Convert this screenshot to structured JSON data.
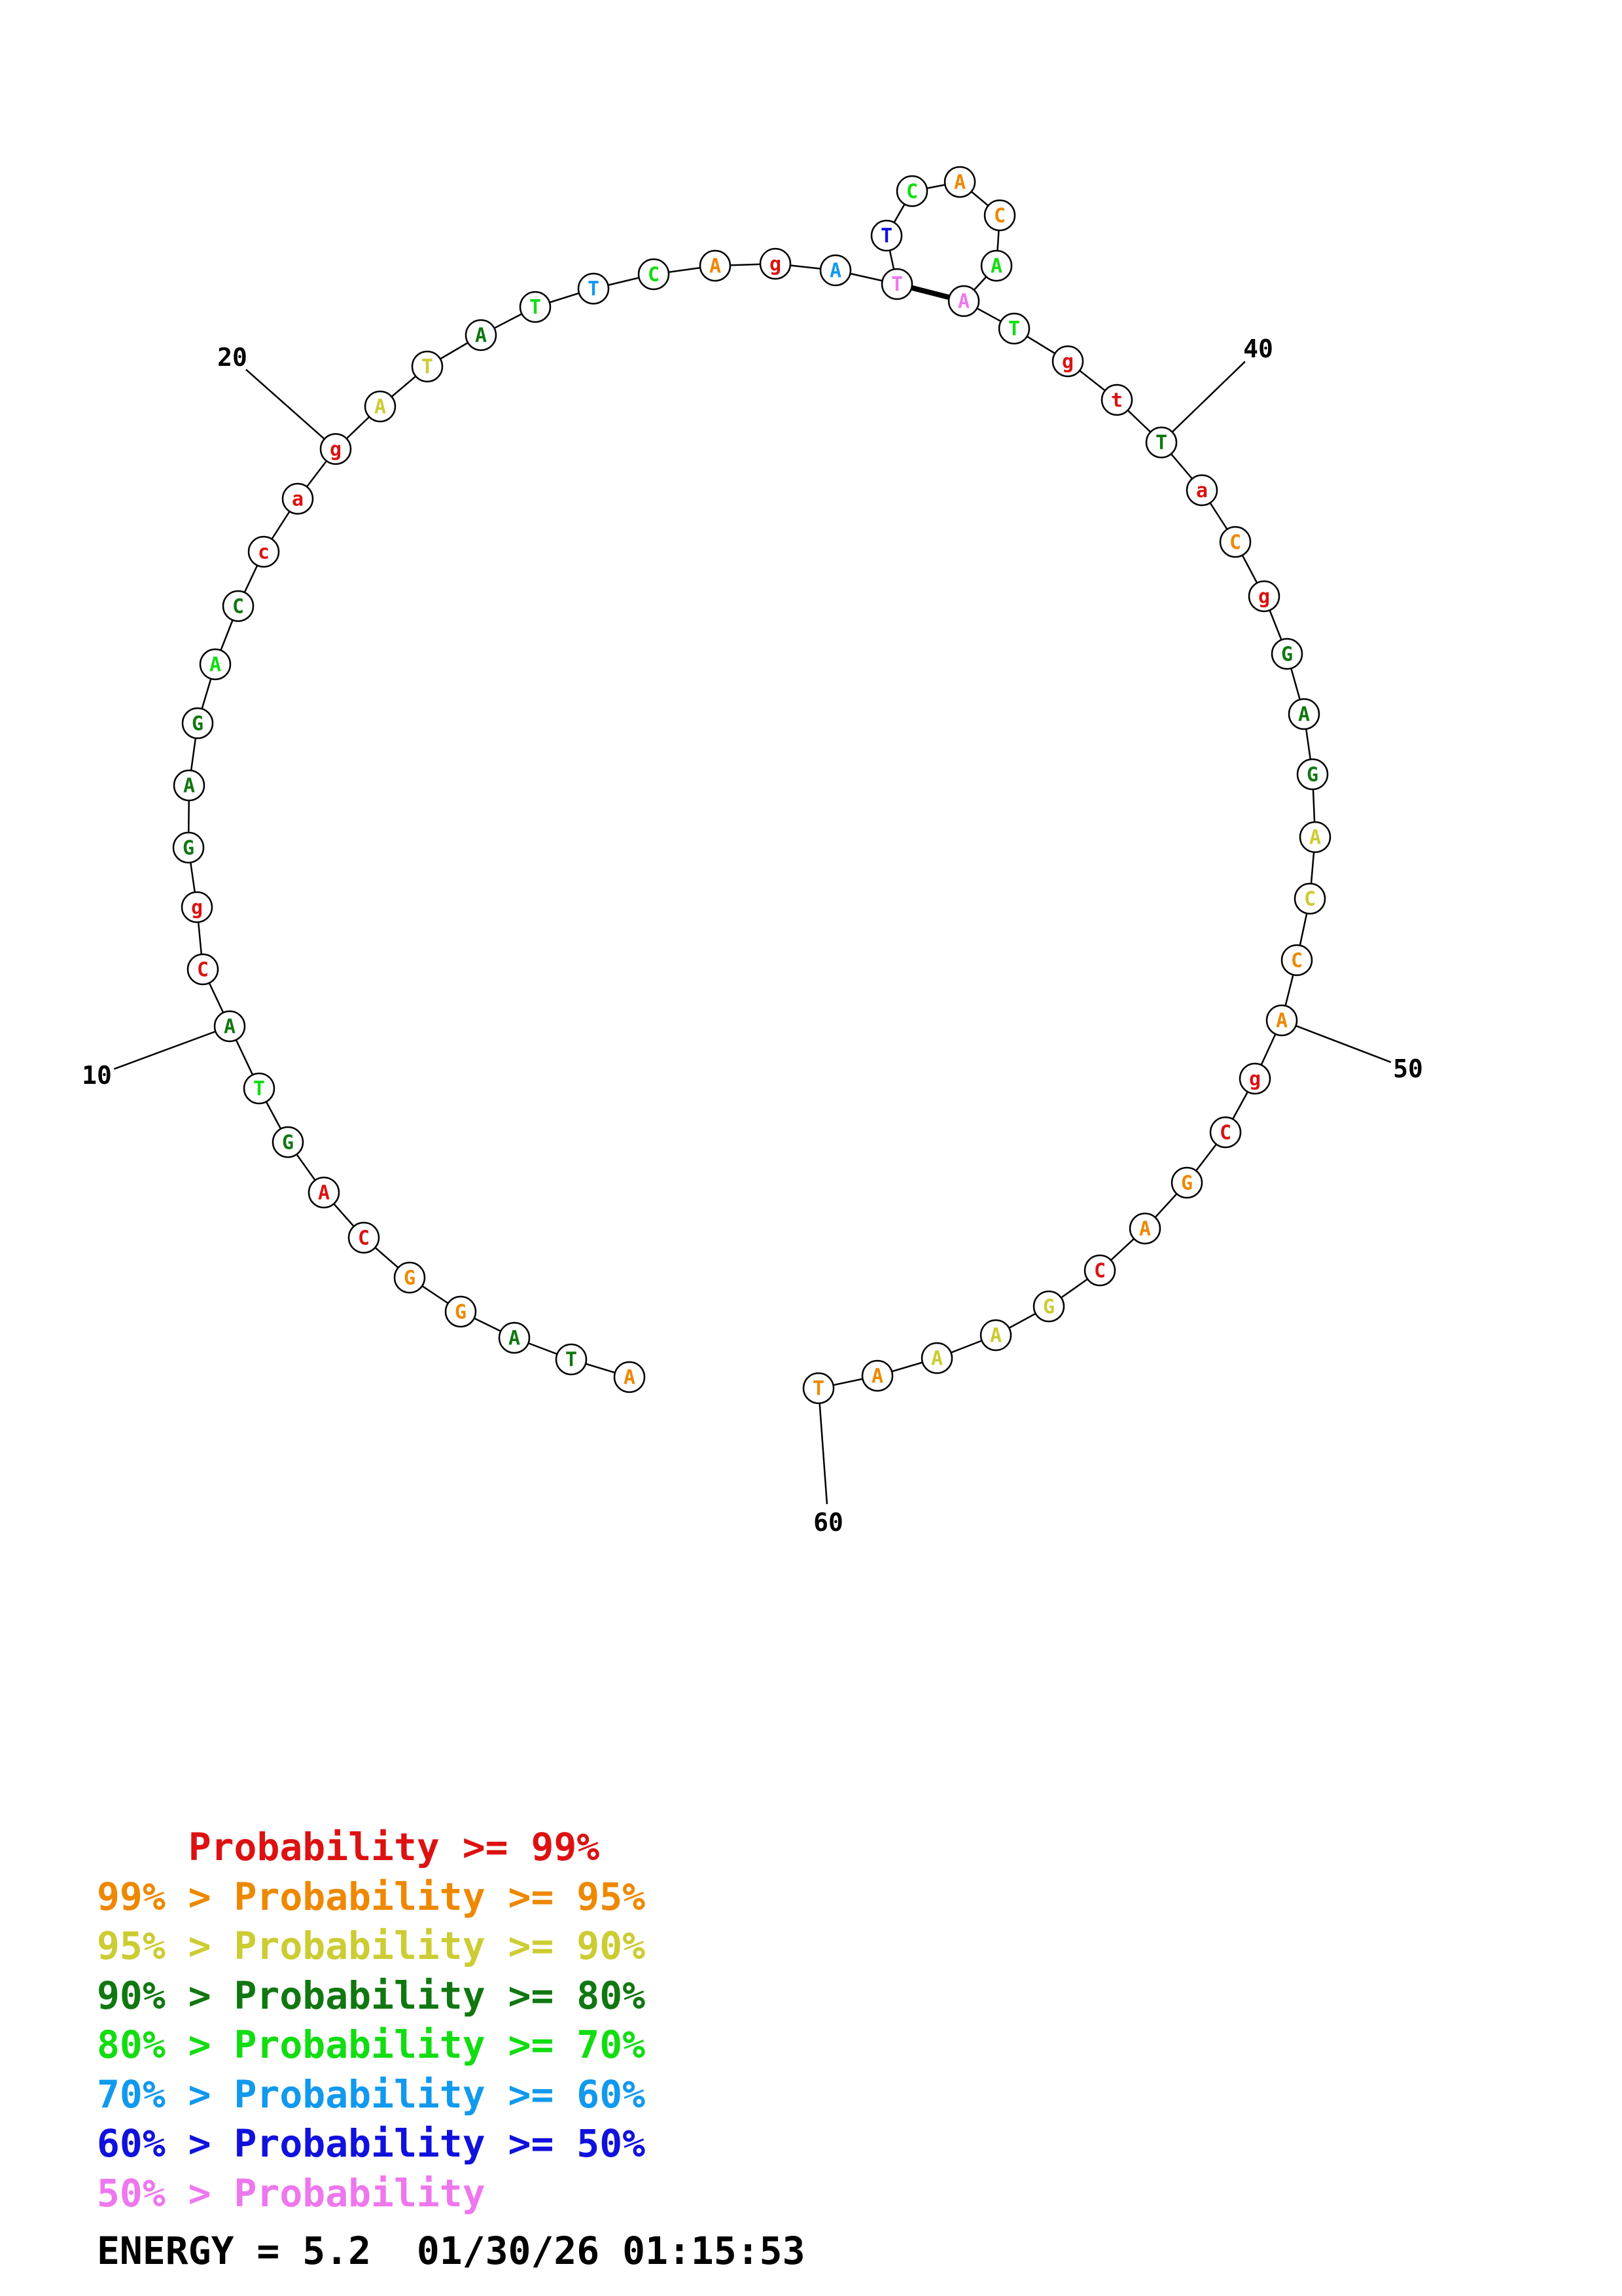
{
  "structure": {
    "sequence": [
      "A",
      "T",
      "A",
      "G",
      "G",
      "C",
      "A",
      "G",
      "T",
      "A",
      "C",
      "g",
      "G",
      "A",
      "G",
      "A",
      "C",
      "c",
      "a",
      "g",
      "A",
      "T",
      "A",
      "T",
      "T",
      "C",
      "A",
      "g",
      "A",
      "T",
      "T",
      "C",
      "A",
      "C",
      "A",
      "A",
      "T",
      "g",
      "t",
      "T",
      "a",
      "C",
      "g",
      "G",
      "A",
      "G",
      "A",
      "C",
      "C",
      "A",
      "g",
      "C",
      "G",
      "A",
      "C",
      "G",
      "A",
      "A",
      "A",
      "T"
    ],
    "base_colors": [
      "#ee8800",
      "#117711",
      "#117711",
      "#ee8800",
      "#ee8800",
      "#dd1111",
      "#dd1111",
      "#117711",
      "#11dd11",
      "#117711",
      "#dd1111",
      "#dd1111",
      "#117711",
      "#117711",
      "#117711",
      "#11dd11",
      "#117711",
      "#dd1111",
      "#dd1111",
      "#dd1111",
      "#cccc33",
      "#cccc33",
      "#117711",
      "#11dd11",
      "#1199ee",
      "#11dd11",
      "#ee8800",
      "#dd1111",
      "#1199ee",
      "#ee77ee",
      "#1111dd",
      "#11dd11",
      "#ee8800",
      "#ee8800",
      "#11dd11",
      "#ee77ee",
      "#11dd11",
      "#dd1111",
      "#dd1111",
      "#117711",
      "#dd1111",
      "#ee8800",
      "#dd1111",
      "#117711",
      "#117711",
      "#117711",
      "#cccc33",
      "#cccc33",
      "#ee8800",
      "#ee8800",
      "#dd1111",
      "#dd1111",
      "#ee8800",
      "#ee8800",
      "#dd1111",
      "#cccc33",
      "#cccc33",
      "#cccc33",
      "#ee8800",
      "#ee8800"
    ],
    "pairs": [
      [
        30,
        36
      ]
    ],
    "numbering": [
      {
        "label": "10",
        "index": 10
      },
      {
        "label": "20",
        "index": 20
      },
      {
        "label": "40",
        "index": 40
      },
      {
        "label": "50",
        "index": 50
      },
      {
        "label": "60",
        "index": 60
      }
    ]
  },
  "legend": [
    {
      "prefix": "    ",
      "text": "Probability >= 99%",
      "color": "#dd1111"
    },
    {
      "prefix": "99% > ",
      "text": "Probability >= 95%",
      "color": "#ee8800"
    },
    {
      "prefix": "95% > ",
      "text": "Probability >= 90%",
      "color": "#cccc33"
    },
    {
      "prefix": "90% > ",
      "text": "Probability >= 80%",
      "color": "#117711"
    },
    {
      "prefix": "80% > ",
      "text": "Probability >= 70%",
      "color": "#11dd11"
    },
    {
      "prefix": "70% > ",
      "text": "Probability >= 60%",
      "color": "#1199ee"
    },
    {
      "prefix": "60% > ",
      "text": "Probability >= 50%",
      "color": "#1111dd"
    },
    {
      "prefix": "50% > ",
      "text": "Probability",
      "color": "#ee77ee"
    }
  ],
  "footer": {
    "energy": "ENERGY = 5.2",
    "timestamp": "01/30/26 01:15:53"
  }
}
